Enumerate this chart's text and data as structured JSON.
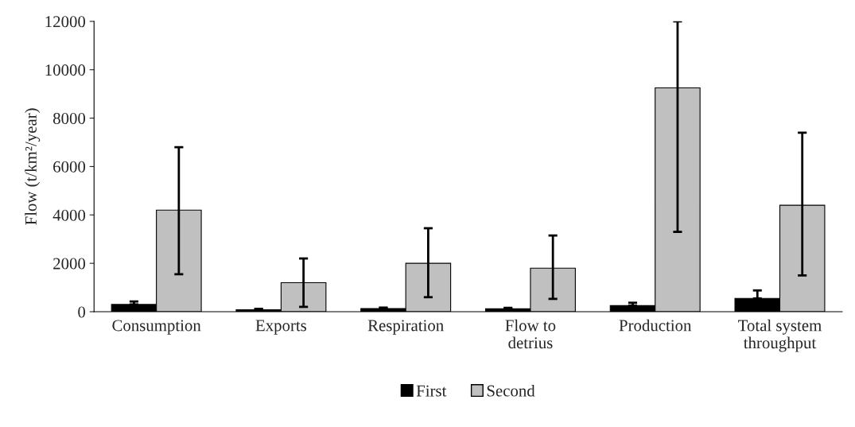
{
  "chart_data": {
    "type": "bar",
    "ylabel": "Flow (t/km²/year)",
    "categories": [
      "Consumption",
      "Exports",
      "Respiration",
      "Flow to\ndetrius",
      "Production",
      "Total system\nthroughput"
    ],
    "series": [
      {
        "name": "First",
        "color": "#000000",
        "values": [
          300,
          80,
          130,
          120,
          250,
          550
        ],
        "errors": [
          [
            300,
            420
          ],
          [
            80,
            120
          ],
          [
            130,
            170
          ],
          [
            120,
            160
          ],
          [
            250,
            370
          ],
          [
            550,
            880
          ]
        ]
      },
      {
        "name": "Second",
        "color": "#c0c0c0",
        "values": [
          4200,
          1200,
          2000,
          1800,
          9250,
          4400
        ],
        "errors": [
          [
            1550,
            6800
          ],
          [
            200,
            2200
          ],
          [
            600,
            3450
          ],
          [
            530,
            3150
          ],
          [
            3300,
            12000
          ],
          [
            1500,
            7400
          ]
        ]
      }
    ],
    "ylim": [
      0,
      12000
    ],
    "yticks": [
      0,
      2000,
      4000,
      6000,
      8000,
      10000,
      12000
    ],
    "grid": false,
    "legend": "bottom"
  }
}
